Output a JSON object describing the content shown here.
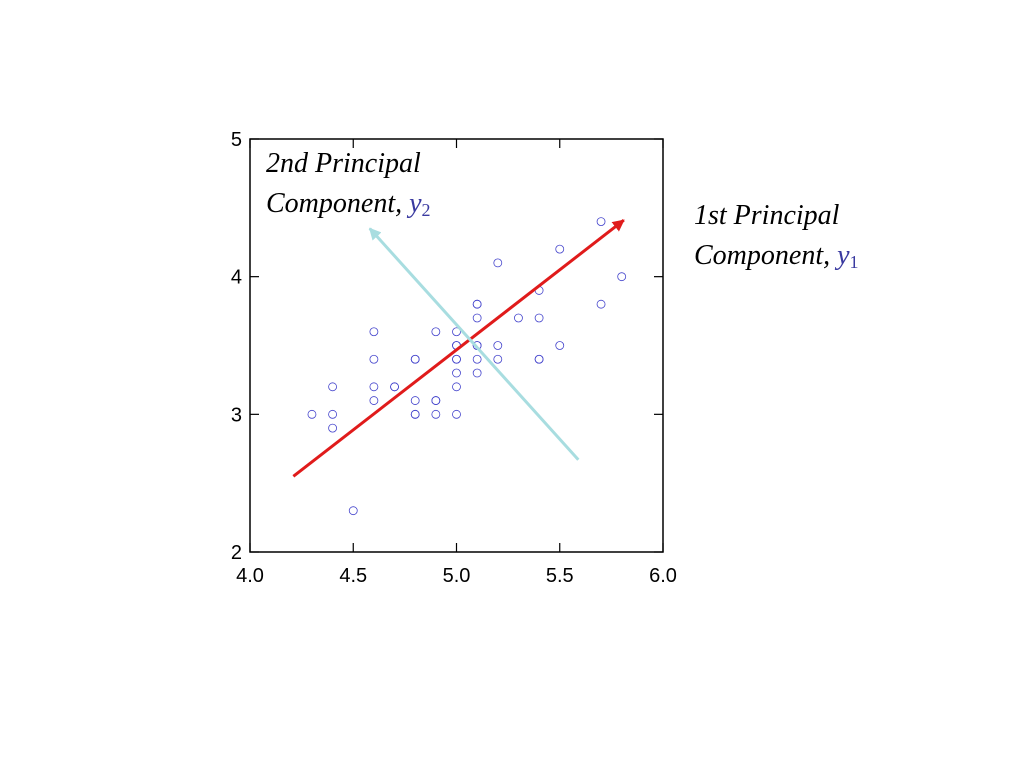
{
  "chart_data": {
    "type": "scatter",
    "xlim": [
      4.0,
      6.0
    ],
    "ylim": [
      2,
      5
    ],
    "xticks": [
      4.0,
      4.5,
      5.0,
      5.5,
      6.0
    ],
    "xtick_labels": [
      "4.0",
      "4.5",
      "5.0",
      "5.5",
      "6.0"
    ],
    "yticks": [
      2,
      3,
      4,
      5
    ],
    "ytick_labels": [
      "2",
      "3",
      "4",
      "5"
    ],
    "grid": false,
    "marker_color": "#4444cc",
    "points": [
      {
        "x": 4.3,
        "y": 3.0
      },
      {
        "x": 4.4,
        "y": 3.2
      },
      {
        "x": 4.4,
        "y": 3.0
      },
      {
        "x": 4.4,
        "y": 2.9
      },
      {
        "x": 4.5,
        "y": 2.3
      },
      {
        "x": 4.6,
        "y": 3.6
      },
      {
        "x": 4.6,
        "y": 3.4
      },
      {
        "x": 4.6,
        "y": 3.2
      },
      {
        "x": 4.6,
        "y": 3.1
      },
      {
        "x": 4.7,
        "y": 3.2
      },
      {
        "x": 4.7,
        "y": 3.2
      },
      {
        "x": 4.8,
        "y": 3.4
      },
      {
        "x": 4.8,
        "y": 3.4
      },
      {
        "x": 4.8,
        "y": 3.1
      },
      {
        "x": 4.8,
        "y": 3.0
      },
      {
        "x": 4.8,
        "y": 3.0
      },
      {
        "x": 4.9,
        "y": 3.6
      },
      {
        "x": 4.9,
        "y": 3.1
      },
      {
        "x": 4.9,
        "y": 3.1
      },
      {
        "x": 4.9,
        "y": 3.0
      },
      {
        "x": 5.0,
        "y": 3.6
      },
      {
        "x": 5.0,
        "y": 3.5
      },
      {
        "x": 5.0,
        "y": 3.5
      },
      {
        "x": 5.0,
        "y": 3.4
      },
      {
        "x": 5.0,
        "y": 3.4
      },
      {
        "x": 5.0,
        "y": 3.3
      },
      {
        "x": 5.0,
        "y": 3.2
      },
      {
        "x": 5.0,
        "y": 3.0
      },
      {
        "x": 5.1,
        "y": 3.8
      },
      {
        "x": 5.1,
        "y": 3.8
      },
      {
        "x": 5.1,
        "y": 3.7
      },
      {
        "x": 5.1,
        "y": 3.5
      },
      {
        "x": 5.1,
        "y": 3.5
      },
      {
        "x": 5.1,
        "y": 3.4
      },
      {
        "x": 5.1,
        "y": 3.3
      },
      {
        "x": 5.2,
        "y": 4.1
      },
      {
        "x": 5.2,
        "y": 3.5
      },
      {
        "x": 5.2,
        "y": 3.4
      },
      {
        "x": 5.3,
        "y": 3.7
      },
      {
        "x": 5.4,
        "y": 3.9
      },
      {
        "x": 5.4,
        "y": 3.7
      },
      {
        "x": 5.4,
        "y": 3.4
      },
      {
        "x": 5.4,
        "y": 3.4
      },
      {
        "x": 5.5,
        "y": 4.2
      },
      {
        "x": 5.5,
        "y": 3.5
      },
      {
        "x": 5.7,
        "y": 4.4
      },
      {
        "x": 5.7,
        "y": 3.8
      },
      {
        "x": 5.8,
        "y": 4.0
      }
    ],
    "arrows": [
      {
        "label": "1st Principal Component",
        "from": [
          4.21,
          2.55
        ],
        "to": [
          5.81,
          4.41
        ],
        "color": "#e01b1b"
      },
      {
        "label": "2nd Principal Component",
        "from": [
          5.59,
          2.67
        ],
        "to": [
          4.58,
          4.35
        ],
        "color": "#a8dde0"
      }
    ],
    "annotations": {
      "pc1": {
        "line1": "1st Principal",
        "line2": "Component,",
        "var": "y",
        "sub": "1"
      },
      "pc2": {
        "line1": "2nd Principal",
        "line2": "Component,",
        "var": "y",
        "sub": "2"
      }
    }
  }
}
